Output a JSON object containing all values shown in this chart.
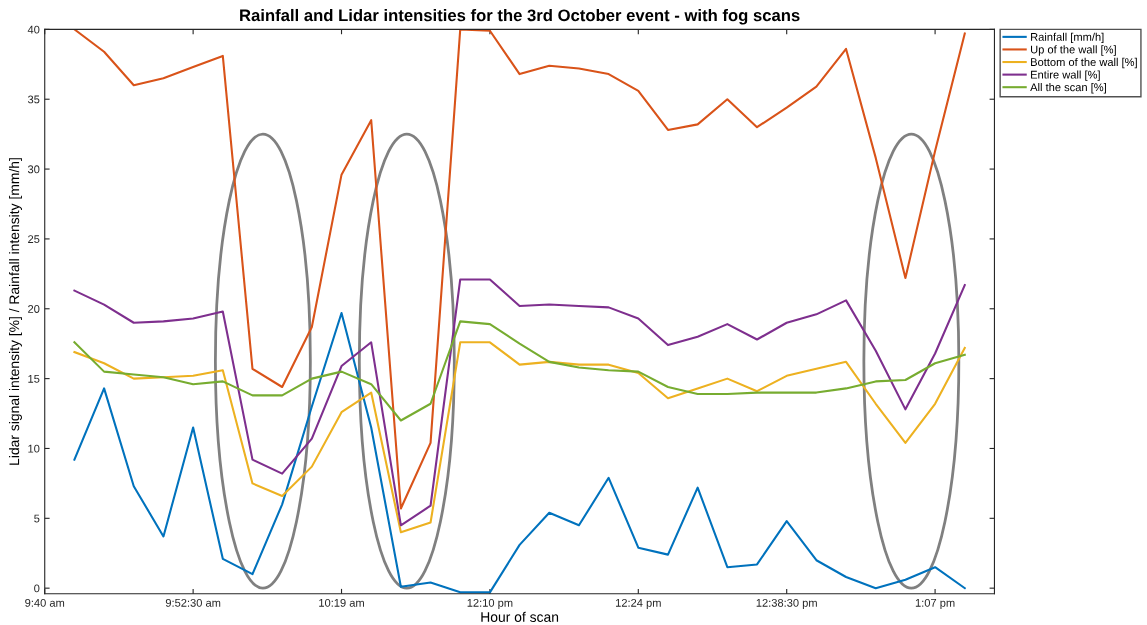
{
  "chart_data": {
    "type": "line",
    "title": "Rainfall and Lidar intensities for the 3rd October event - with fog scans",
    "xlabel": "Hour of scan",
    "ylabel": "Lidar signal intensity [%] / Rainfall intensity [mm/h]",
    "categories": [
      "9:40 am",
      null,
      null,
      null,
      null,
      "9:52:30 am",
      null,
      null,
      null,
      null,
      "10:19 am",
      null,
      null,
      null,
      null,
      "12:10 pm",
      null,
      null,
      null,
      null,
      "12:24 pm",
      null,
      null,
      null,
      null,
      "12:38:30 pm",
      null,
      null,
      null,
      null,
      "1:07 pm",
      null
    ],
    "series": [
      {
        "name": "Rainfall [mm/h]",
        "color": "#0072bd",
        "values": [
          null,
          9.2,
          14.3,
          7.3,
          3.7,
          11.5,
          2.1,
          1.0,
          6.0,
          13.0,
          19.7,
          11.5,
          0.1,
          0.4,
          -0.3,
          -0.3,
          3.1,
          5.4,
          4.5,
          7.9,
          2.9,
          2.4,
          7.2,
          1.5,
          1.7,
          4.8,
          2.0,
          0.8,
          0.0,
          0.6,
          1.5,
          0.0
        ]
      },
      {
        "name": "Up of the wall [%]",
        "color": "#d95319",
        "values": [
          null,
          40.0,
          38.4,
          36.0,
          36.5,
          37.3,
          38.1,
          15.7,
          14.4,
          18.7,
          29.6,
          33.5,
          5.7,
          10.4,
          40.0,
          39.9,
          36.8,
          37.4,
          37.2,
          36.8,
          35.6,
          32.8,
          33.2,
          35.0,
          33.0,
          34.4,
          35.9,
          38.6,
          30.8,
          22.2,
          31.3,
          39.7
        ]
      },
      {
        "name": "Bottom of the wall [%]",
        "color": "#edb120",
        "values": [
          null,
          16.9,
          16.1,
          15.0,
          15.1,
          15.2,
          15.6,
          7.5,
          6.6,
          8.7,
          12.6,
          14.0,
          4.0,
          4.7,
          17.6,
          17.6,
          16.0,
          16.2,
          16.0,
          16.0,
          15.4,
          13.6,
          14.3,
          15.0,
          14.1,
          15.2,
          15.7,
          16.2,
          13.2,
          10.4,
          13.2,
          17.2
        ]
      },
      {
        "name": "Entire wall [%]",
        "color": "#7e2f8e",
        "values": [
          null,
          21.3,
          20.3,
          19.0,
          19.1,
          19.3,
          19.8,
          9.2,
          8.2,
          10.7,
          15.9,
          17.6,
          4.5,
          5.9,
          22.1,
          22.1,
          20.2,
          20.3,
          20.2,
          20.1,
          19.3,
          17.4,
          18.0,
          18.9,
          17.8,
          19.0,
          19.6,
          20.6,
          17.0,
          12.8,
          16.8,
          21.7
        ]
      },
      {
        "name": "All the scan [%]",
        "color": "#77ac30",
        "values": [
          null,
          17.6,
          15.5,
          15.3,
          15.1,
          14.6,
          14.8,
          13.8,
          13.8,
          15.0,
          15.5,
          14.6,
          12.0,
          13.2,
          19.1,
          18.9,
          17.5,
          16.2,
          15.8,
          15.6,
          15.5,
          14.4,
          13.9,
          13.9,
          14.0,
          14.0,
          14.0,
          14.3,
          14.8,
          14.9,
          16.1,
          16.7
        ]
      }
    ],
    "ylim": [
      -0.4,
      40
    ],
    "yticks": [
      0,
      5,
      10,
      15,
      20,
      25,
      30,
      35,
      40
    ],
    "grid": false,
    "legend": "top right",
    "marker": "none",
    "line_style": "solid"
  }
}
